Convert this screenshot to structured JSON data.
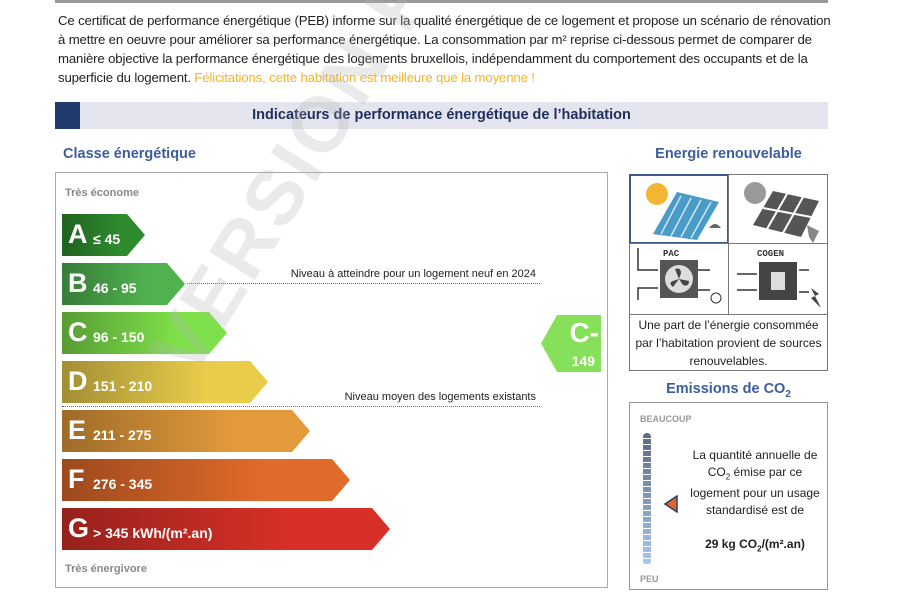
{
  "intro": {
    "text": "Ce certificat de performance énergétique (PEB) informe sur la qualité énergétique de ce logement et propose un scénario de rénovation à mettre en oeuvre pour améliorer sa performance énergétique. La consommation par m² reprise ci-dessous permet de comparer de manière objective la performance énergétique des logements bruxellois, indépendamment du comportement des occupants et de la superficie du logement.",
    "highlight": "Félicitations, cette habitation est meilleure que la moyenne !",
    "highlight_color": "#f0b429"
  },
  "header": {
    "title": "Indicateurs de performance énergétique de l’habitation"
  },
  "classe": {
    "title": "Classe énergétique",
    "top_label": "Très économe",
    "bottom_label": "Très énergivore",
    "bars": [
      {
        "letter": "A",
        "range": "≤ 45",
        "color": "#2e8b2e"
      },
      {
        "letter": "B",
        "range": "46 - 95",
        "color": "#4fb24f"
      },
      {
        "letter": "C",
        "range": "96 - 150",
        "color": "#7ee04a"
      },
      {
        "letter": "D",
        "range": "151 - 210",
        "color": "#e8cc4a"
      },
      {
        "letter": "E",
        "range": "211 - 275",
        "color": "#e39a3a"
      },
      {
        "letter": "F",
        "range": "276 - 345",
        "color": "#e06a2a"
      },
      {
        "letter": "G",
        "range": "> 345  kWh/(m².an)",
        "color": "#d83028"
      }
    ],
    "note_new": "Niveau à atteindre pour un logement neuf en 2024",
    "note_avg": "Niveau moyen des logements existants",
    "result": {
      "class": "C-",
      "value": "149",
      "color": "#86e05a"
    }
  },
  "renouvelable": {
    "title": "Energie renouvelable",
    "pac_label": "PAC",
    "cogen_label": "COGEN",
    "text": "Une part de l’énergie consommée par l’habitation provient de sources renouvelables."
  },
  "co2": {
    "title": "Emissions de CO",
    "title_sub": "2",
    "top": "BEAUCOUP",
    "bottom": "PEU",
    "text_1": "La quantité annuelle de",
    "text_2a": "CO",
    "text_2b": " émise par ce",
    "text_3": "logement pour un usage standardisé est de",
    "value_a": "29 kg CO",
    "value_b": "/(m².an)"
  },
  "watermark": "VERSION PROVISOIRE"
}
